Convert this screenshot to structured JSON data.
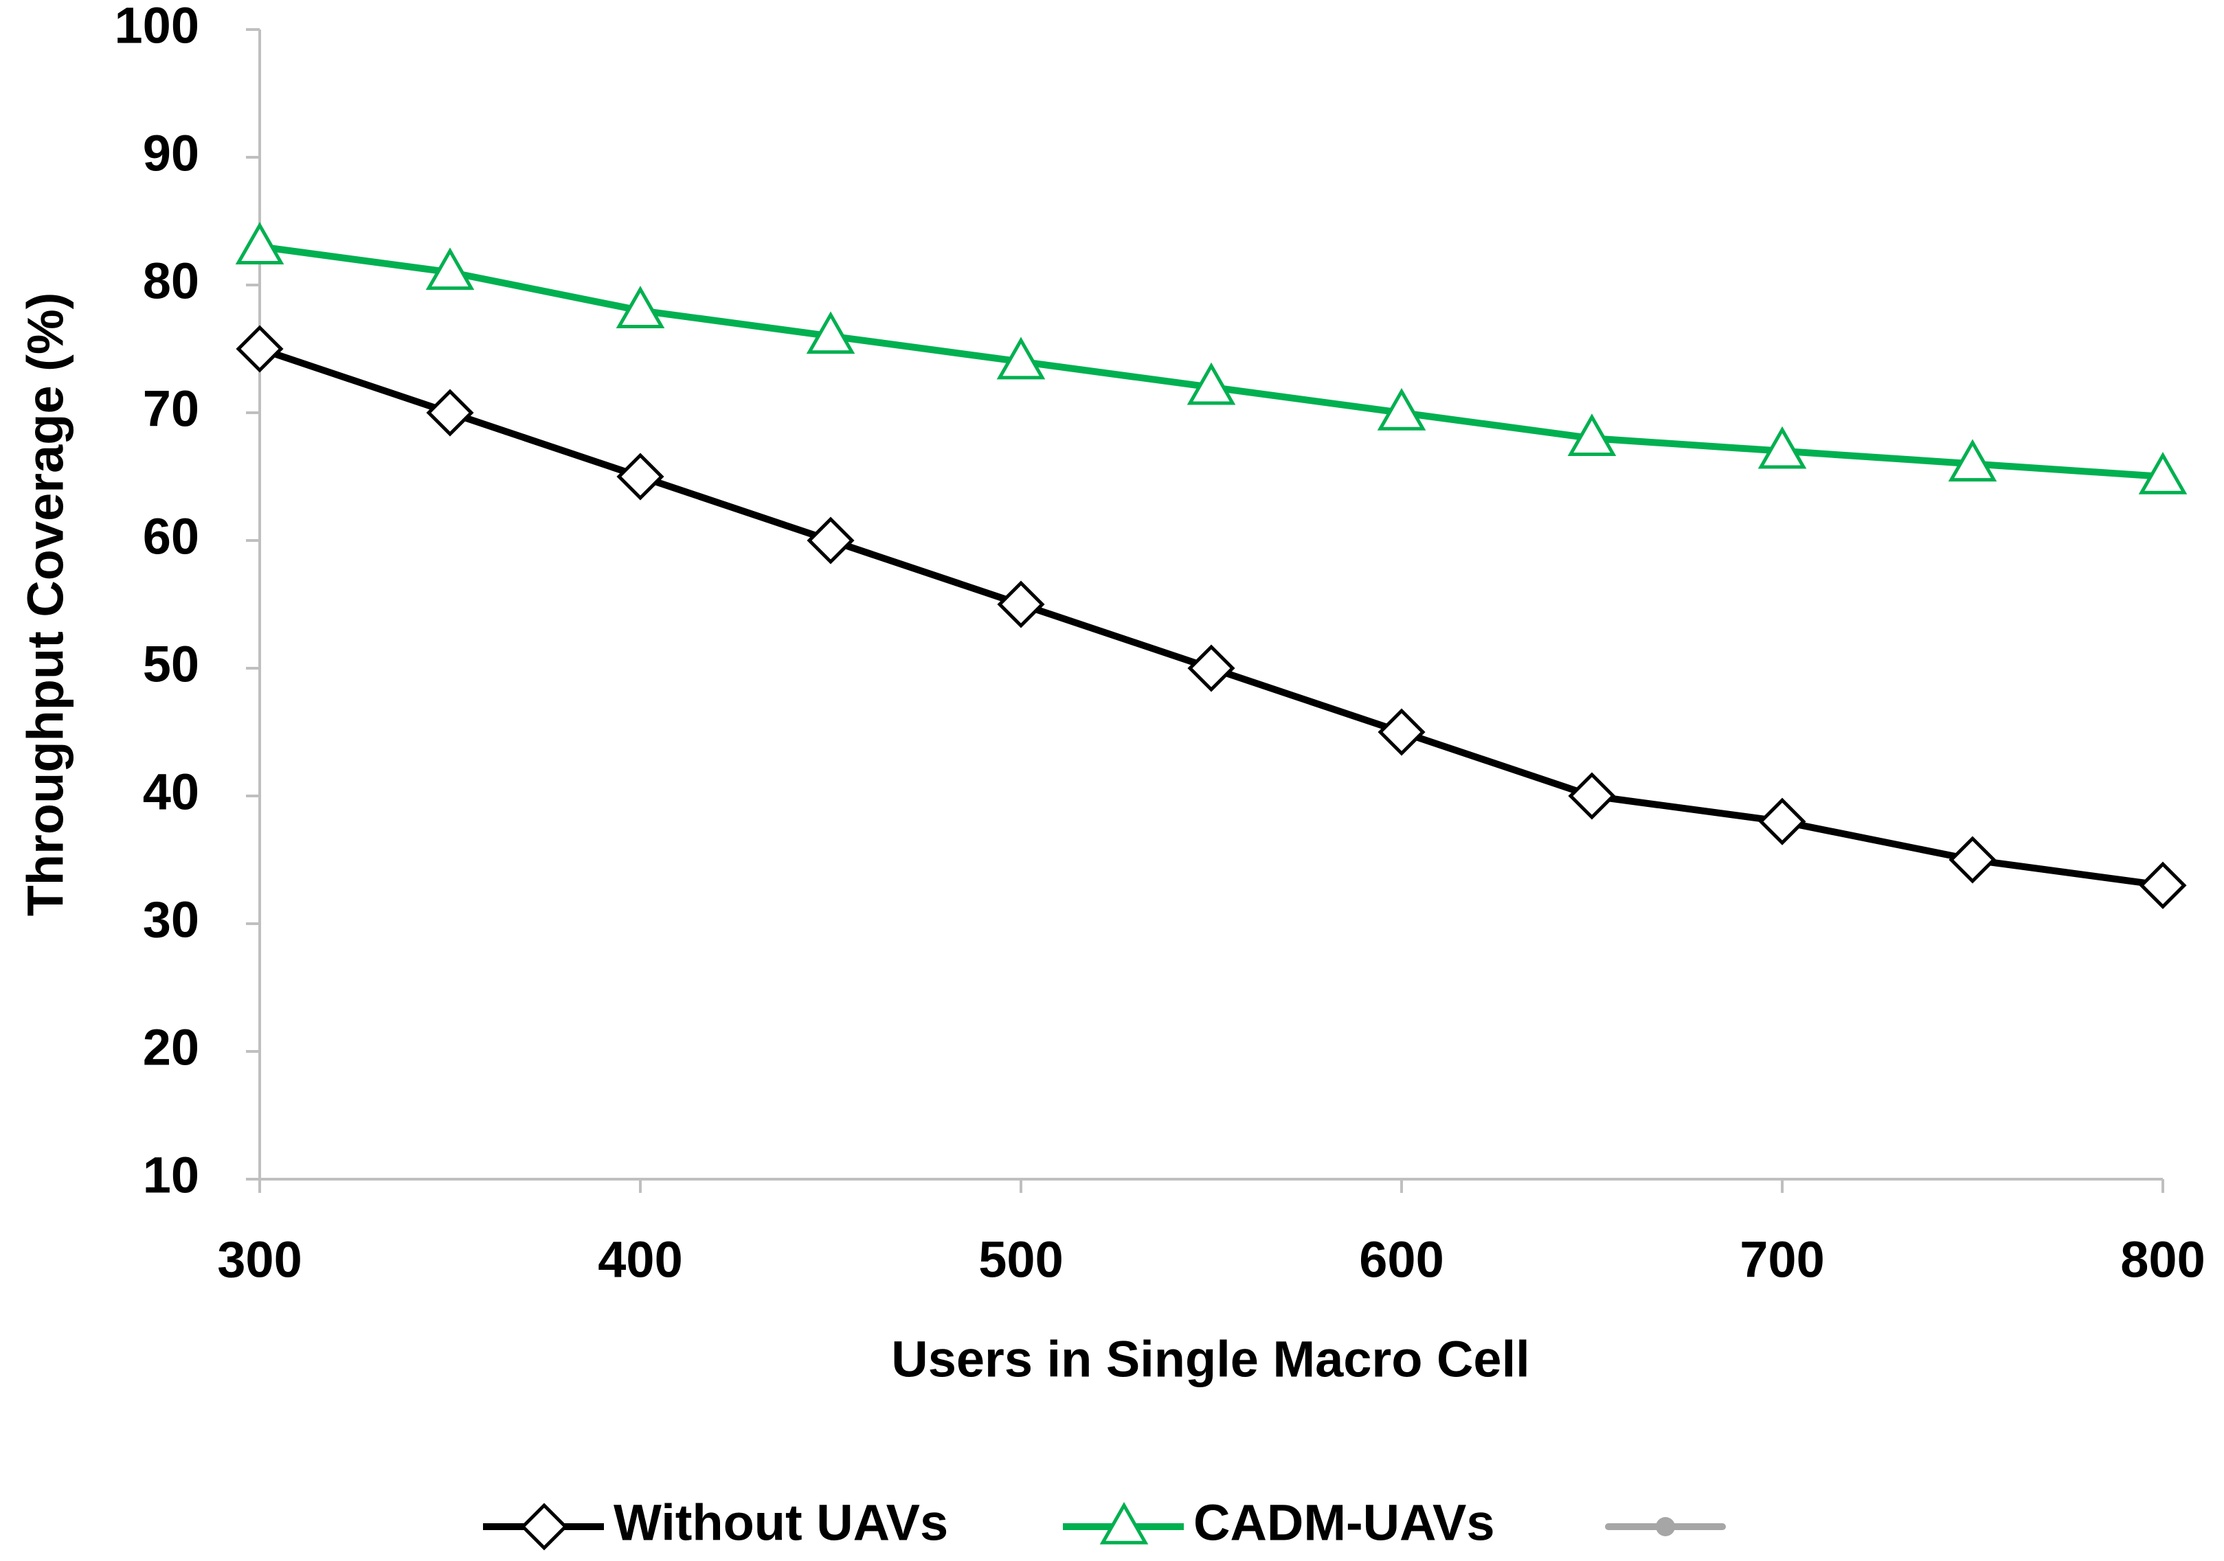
{
  "chart_data": {
    "type": "line",
    "xlabel": "Users in Single Macro Cell",
    "ylabel": "Throughput Coverage  (%)",
    "x": [
      300,
      350,
      400,
      450,
      500,
      550,
      600,
      650,
      700,
      750,
      800
    ],
    "series": [
      {
        "name": "Without UAVs",
        "color": "#000000",
        "marker": "diamond",
        "values": [
          75,
          70,
          65,
          60,
          55,
          50,
          45,
          40,
          38,
          35,
          33
        ]
      },
      {
        "name": "CADM-UAVs",
        "color": "#00b050",
        "marker": "triangle",
        "values": [
          83,
          81,
          78,
          76,
          74,
          72,
          70,
          68,
          67,
          66,
          65
        ]
      }
    ],
    "xlim": [
      300,
      800
    ],
    "xticks": [
      300,
      400,
      500,
      600,
      700,
      800
    ],
    "ylim": [
      10,
      100
    ],
    "yticks": [
      10,
      20,
      30,
      40,
      50,
      60,
      70,
      80,
      90,
      100
    ],
    "grid": false,
    "legend": "bottom"
  }
}
